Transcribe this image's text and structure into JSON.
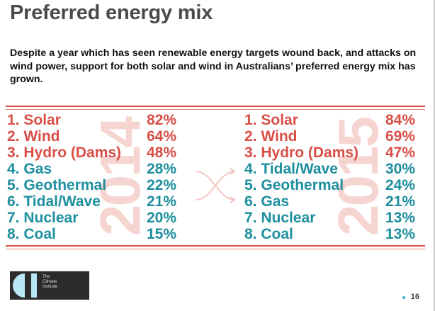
{
  "header": {
    "title": "Preferred energy mix",
    "subtitle": "Despite a year which has seen renewable energy targets wound back, and attacks on wind power, support for both solar and wind in Australians’ preferred energy mix has grown."
  },
  "years": {
    "left": "2014",
    "right": "2015"
  },
  "rankings_2014": [
    {
      "rank": "1.",
      "name": "Solar",
      "pct": "82%",
      "highlight": false
    },
    {
      "rank": "2.",
      "name": "Wind",
      "pct": "64%",
      "highlight": false
    },
    {
      "rank": "3.",
      "name": "Hydro (Dams)",
      "pct": "48%",
      "highlight": false
    },
    {
      "rank": "4.",
      "name": "Gas",
      "pct": "28%",
      "highlight": true
    },
    {
      "rank": "5.",
      "name": "Geothermal",
      "pct": "22%",
      "highlight": true
    },
    {
      "rank": "6.",
      "name": "Tidal/Wave",
      "pct": "21%",
      "highlight": true
    },
    {
      "rank": "7.",
      "name": "Nuclear",
      "pct": "20%",
      "highlight": true
    },
    {
      "rank": "8.",
      "name": "Coal",
      "pct": "15%",
      "highlight": true
    }
  ],
  "rankings_2015": [
    {
      "rank": "1.",
      "name": "Solar",
      "pct": "84%",
      "highlight": false
    },
    {
      "rank": "2.",
      "name": "Wind",
      "pct": "69%",
      "highlight": false
    },
    {
      "rank": "3.",
      "name": "Hydro (Dams)",
      "pct": "47%",
      "highlight": false
    },
    {
      "rank": "4.",
      "name": "Tidal/Wave",
      "pct": "30%",
      "highlight": true
    },
    {
      "rank": "5.",
      "name": "Geothermal",
      "pct": "24%",
      "highlight": true
    },
    {
      "rank": "6.",
      "name": "Gas",
      "pct": "21%",
      "highlight": true
    },
    {
      "rank": "7.",
      "name": "Nuclear",
      "pct": "13%",
      "highlight": true
    },
    {
      "rank": "8.",
      "name": "Coal",
      "pct": "13%",
      "highlight": true
    }
  ],
  "footer": {
    "logo_text": [
      "The",
      "Climate",
      "Institute"
    ],
    "page_number": "16"
  },
  "colors": {
    "accent_red": "#d94f47",
    "accent_teal": "#1d8f9e",
    "watermark": "#f6d4d0"
  }
}
